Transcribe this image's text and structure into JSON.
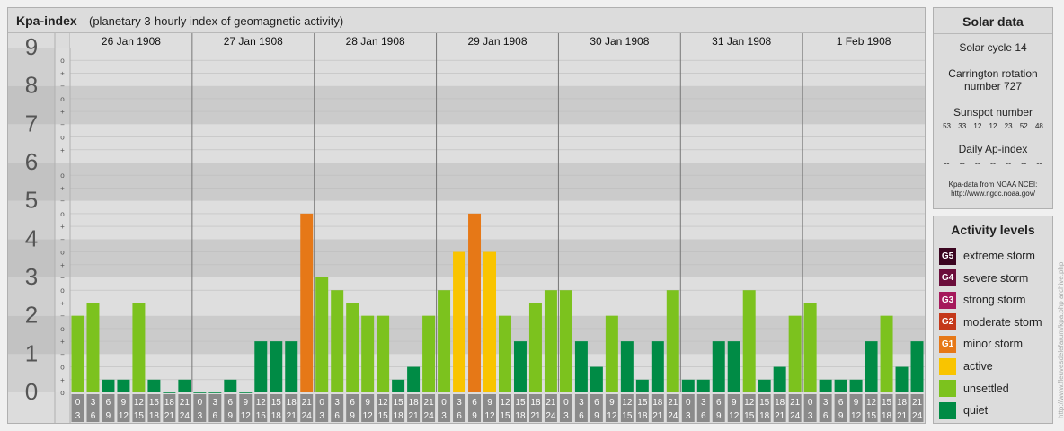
{
  "chart_data": {
    "type": "bar",
    "title": "Kpa-index",
    "subtitle": "(planetary 3-hourly index of geomagnetic activity)",
    "ylim": [
      0,
      9
    ],
    "y_tick_labels": [
      "0",
      "1",
      "2",
      "3",
      "4",
      "5",
      "6",
      "7",
      "8",
      "9"
    ],
    "sub_tick_labels": [
      "+",
      "o",
      "−"
    ],
    "days": [
      "26 Jan 1908",
      "27 Jan 1908",
      "28 Jan 1908",
      "29 Jan 1908",
      "30 Jan 1908",
      "31 Jan 1908",
      "1 Feb 1908"
    ],
    "interval_labels": [
      [
        "0",
        "3"
      ],
      [
        "3",
        "6"
      ],
      [
        "6",
        "9"
      ],
      [
        "9",
        "12"
      ],
      [
        "12",
        "15"
      ],
      [
        "15",
        "18"
      ],
      [
        "18",
        "21"
      ],
      [
        "21",
        "24"
      ]
    ],
    "values": [
      [
        2,
        2.333,
        0.333,
        0.333,
        2.333,
        0.333,
        0,
        0.333
      ],
      [
        0,
        0,
        0.333,
        0,
        1.333,
        1.333,
        1.333,
        4.667
      ],
      [
        3,
        2.667,
        2.333,
        2,
        2,
        0.333,
        0.667,
        2
      ],
      [
        2.667,
        3.667,
        4.667,
        3.667,
        2,
        1.333,
        2.333,
        2.667
      ],
      [
        2.667,
        1.333,
        0.667,
        2,
        1.333,
        0.333,
        1.333,
        2.667
      ],
      [
        0.333,
        0.333,
        1.333,
        1.333,
        2.667,
        0.333,
        0.667,
        2
      ],
      [
        2.333,
        0.333,
        0.333,
        0.333,
        1.333,
        2,
        0.667,
        1.333
      ]
    ],
    "level_colors": {
      "quiet": "#008b45",
      "unsettled": "#7cc21e",
      "active": "#f9c400",
      "G1": "#e67817",
      "G2": "#c4381a",
      "G3": "#a5195b",
      "G4": "#6b0e3b",
      "G5": "#3b0520"
    },
    "grid": true
  },
  "solar": {
    "title": "Solar data",
    "cycle": "Solar cycle 14",
    "carrington_line1": "Carrington rotation",
    "carrington_line2": "number 727",
    "sunspot_title": "Sunspot number",
    "sunspots": [
      "53",
      "33",
      "12",
      "12",
      "23",
      "52",
      "48"
    ],
    "ap_title": "Daily Ap-index",
    "ap_values": [
      "--",
      "--",
      "--",
      "--",
      "--",
      "--",
      "--"
    ],
    "source_line1": "Kpa-data from NOAA NCEI:",
    "source_line2": "http://www.ngdc.noaa.gov/"
  },
  "activity": {
    "title": "Activity levels",
    "levels": [
      {
        "code": "G5",
        "label": "extreme storm",
        "color": "#3b0520"
      },
      {
        "code": "G4",
        "label": "severe storm",
        "color": "#6b0e3b"
      },
      {
        "code": "G3",
        "label": "strong storm",
        "color": "#a5195b"
      },
      {
        "code": "G2",
        "label": "moderate storm",
        "color": "#c4381a"
      },
      {
        "code": "G1",
        "label": "minor storm",
        "color": "#e67817"
      },
      {
        "code": "",
        "label": "active",
        "color": "#f9c400"
      },
      {
        "code": "",
        "label": "unsettled",
        "color": "#7cc21e"
      },
      {
        "code": "",
        "label": "quiet",
        "color": "#008b45"
      }
    ]
  },
  "watermark": "http://www.fleuvesdelefarum/kpa.php archive.php"
}
